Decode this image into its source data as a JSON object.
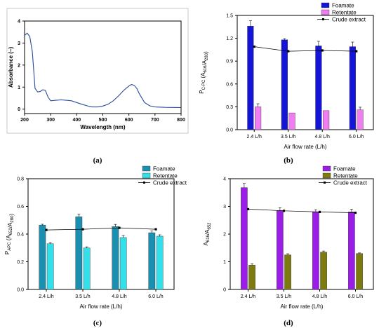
{
  "chart_data": [
    {
      "id": "a",
      "type": "line",
      "panel_label": "(a)",
      "xlabel": "Wavelength (nm)",
      "ylabel": "Absorbance (–)",
      "xlim": [
        200,
        800
      ],
      "ylim": [
        -0.2,
        4
      ],
      "xticks": [
        "200",
        "300",
        "400",
        "500",
        "600",
        "700",
        "800"
      ],
      "yticks": [
        "0",
        "1",
        "2",
        "3",
        "4"
      ],
      "series": [
        {
          "color": "#2a4b9b",
          "x": [
            200,
            210,
            220,
            230,
            240,
            250,
            260,
            270,
            280,
            290,
            300,
            320,
            340,
            360,
            380,
            400,
            420,
            440,
            460,
            480,
            500,
            520,
            540,
            560,
            580,
            600,
            610,
            620,
            630,
            640,
            660,
            680,
            700,
            740,
            800
          ],
          "y": [
            3.35,
            3.45,
            3.3,
            2.6,
            0.95,
            0.78,
            0.8,
            0.88,
            0.85,
            0.55,
            0.38,
            0.4,
            0.42,
            0.4,
            0.38,
            0.3,
            0.22,
            0.15,
            0.1,
            0.1,
            0.14,
            0.22,
            0.38,
            0.6,
            0.85,
            1.05,
            1.12,
            1.08,
            0.95,
            0.7,
            0.3,
            0.15,
            0.1,
            0.08,
            0.07
          ]
        }
      ]
    },
    {
      "id": "b",
      "type": "bar",
      "panel_label": "(b)",
      "xlabel": "Air flow rate (L/h)",
      "ylabel_main": "P",
      "ylabel_sub1": "C-PC",
      "ylabel_rest": " (A",
      "ylabel_sub2": "616",
      "ylabel_slash": "/A",
      "ylabel_sub3": "280",
      "ylabel_close": ")",
      "categories": [
        "2.4 L/h",
        "3.5 L/h",
        "4.8 L/h",
        "6.0 L/h"
      ],
      "ylim": [
        0,
        1.5
      ],
      "yticks": [
        "0.0",
        "0.3",
        "0.6",
        "0.9",
        "1.2",
        "1.5"
      ],
      "legend": [
        "Foamate",
        "Retentate",
        "Crude extract"
      ],
      "series": [
        {
          "name": "Foamate",
          "color": "#1515d8",
          "values": [
            1.36,
            1.18,
            1.1,
            1.09
          ],
          "errors": [
            0.07,
            0.015,
            0.06,
            0.06
          ]
        },
        {
          "name": "Retentate",
          "color": "#f07cf2",
          "values": [
            0.3,
            0.22,
            0.25,
            0.26
          ],
          "errors": [
            0.04,
            0,
            0,
            0.035
          ]
        },
        {
          "name": "Crude extract",
          "color": "#000000",
          "values": [
            1.09,
            1.03,
            1.04,
            1.03
          ]
        }
      ]
    },
    {
      "id": "c",
      "type": "bar",
      "panel_label": "(c)",
      "xlabel": "Air flow rate (L/h)",
      "ylabel_main": "P",
      "ylabel_sub1": "APC",
      "ylabel_rest": " (A",
      "ylabel_sub2": "652",
      "ylabel_slash": "/A",
      "ylabel_sub3": "280",
      "ylabel_close": ")",
      "categories": [
        "2.4 L/h",
        "3.5 L/h",
        "4.8 L/h",
        "6.0 L/h"
      ],
      "ylim": [
        0,
        0.8
      ],
      "yticks": [
        "0.0",
        "0.2",
        "0.4",
        "0.6",
        "0.8"
      ],
      "legend": [
        "Foamate",
        "Retentate",
        "Crude extract"
      ],
      "series": [
        {
          "name": "Foamate",
          "color": "#1a8fb0",
          "values": [
            0.465,
            0.525,
            0.455,
            0.41
          ],
          "errors": [
            0.006,
            0.02,
            0.015,
            0.012
          ]
        },
        {
          "name": "Retentate",
          "color": "#33dfe8",
          "values": [
            0.33,
            0.3,
            0.375,
            0.385
          ],
          "errors": [
            0.008,
            0.008,
            0.015,
            0.01
          ]
        },
        {
          "name": "Crude extract",
          "color": "#000000",
          "values": [
            0.43,
            0.435,
            0.445,
            0.435
          ]
        }
      ]
    },
    {
      "id": "d",
      "type": "bar",
      "panel_label": "(d)",
      "xlabel": "Air flow rate (L/h)",
      "ylabel_main": "A",
      "ylabel_sub1": "616",
      "ylabel_rest": "/A",
      "ylabel_sub2": "652",
      "ylabel_slash": "",
      "ylabel_sub3": "",
      "ylabel_close": "",
      "categories": [
        "2.4 L/h",
        "3.5 L/h",
        "4.8 L/h",
        "6.0 L/h"
      ],
      "ylim": [
        0,
        4
      ],
      "yticks": [
        "0",
        "1",
        "2",
        "3",
        "4"
      ],
      "legend": [
        "Foamate",
        "Retentate",
        "Crude extract"
      ],
      "series": [
        {
          "name": "Foamate",
          "color": "#9a1ee6",
          "values": [
            3.68,
            2.85,
            2.8,
            2.8
          ],
          "errors": [
            0.15,
            0.1,
            0.08,
            0.1
          ]
        },
        {
          "name": "Retentate",
          "color": "#7d7a10",
          "values": [
            0.88,
            1.25,
            1.35,
            1.3
          ],
          "errors": [
            0.05,
            0.04,
            0.04,
            0.02
          ]
        },
        {
          "name": "Crude extract",
          "color": "#000000",
          "values": [
            2.9,
            2.84,
            2.8,
            2.77
          ]
        }
      ]
    }
  ]
}
